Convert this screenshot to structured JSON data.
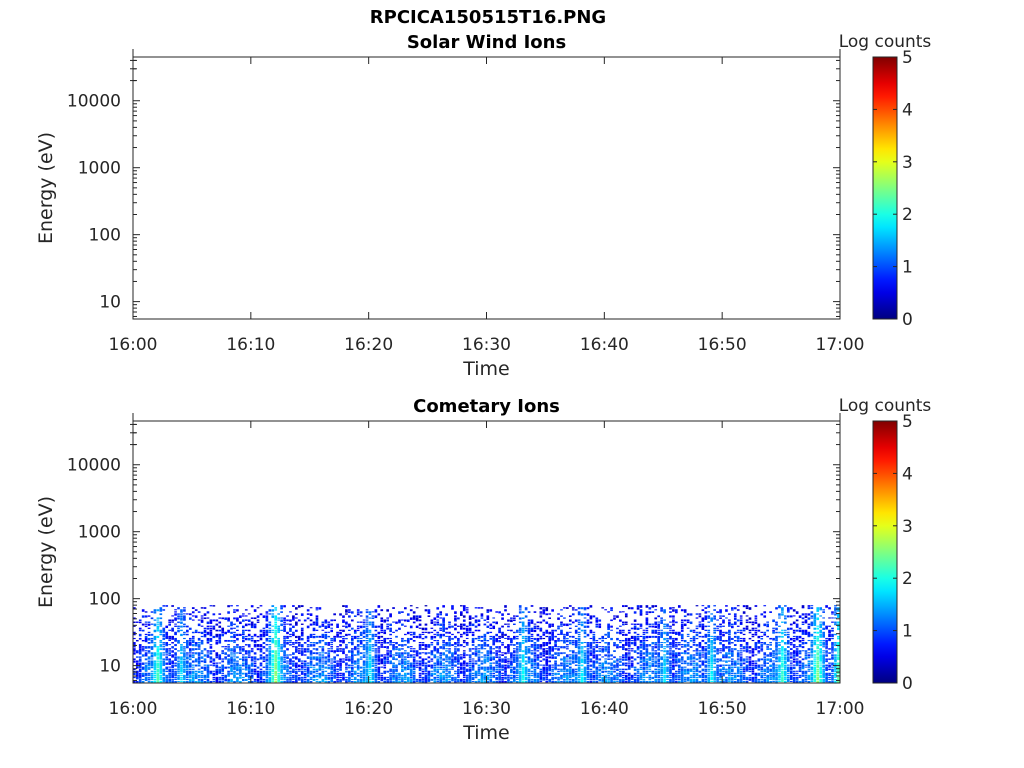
{
  "figure": {
    "title": "RPCICA150515T16.PNG"
  },
  "chart_data": [
    {
      "type": "heatmap",
      "title": "Solar Wind Ions",
      "xlabel": "Time",
      "ylabel": "Energy (eV)",
      "x_ticks": [
        "16:00",
        "16:10",
        "16:20",
        "16:30",
        "16:40",
        "16:50",
        "17:00"
      ],
      "y_ticks": [
        "10",
        "100",
        "1000",
        "10000"
      ],
      "y_scale": "log",
      "ylim": [
        5.5,
        45000
      ],
      "colorbar": {
        "label": "Log counts",
        "ticks": [
          "0",
          "1",
          "2",
          "3",
          "4",
          "5"
        ],
        "range": [
          0,
          5
        ],
        "colormap": "jet"
      },
      "data_summary": "empty - no counts"
    },
    {
      "type": "heatmap",
      "title": "Cometary Ions",
      "xlabel": "Time",
      "ylabel": "Energy (eV)",
      "x_ticks": [
        "16:00",
        "16:10",
        "16:20",
        "16:30",
        "16:40",
        "16:50",
        "17:00"
      ],
      "y_ticks": [
        "10",
        "100",
        "1000",
        "10000"
      ],
      "y_scale": "log",
      "ylim": [
        5.5,
        45000
      ],
      "colorbar": {
        "label": "Log counts",
        "ticks": [
          "0",
          "1",
          "2",
          "3",
          "4",
          "5"
        ],
        "range": [
          0,
          5
        ],
        "colormap": "jet"
      },
      "data_summary": "counts below ~80 eV throughout 16:00-17:00, mostly 0.3-2 log counts with bursts up to ~2.5-3 near 16:02, 16:12, 16:57-17:00",
      "energy_cutoff_eV": 80,
      "bursts": [
        {
          "time": "16:02",
          "peak_log_counts": 2.3
        },
        {
          "time": "16:04",
          "peak_log_counts": 1.8
        },
        {
          "time": "16:12",
          "peak_log_counts": 2.7
        },
        {
          "time": "16:20",
          "peak_log_counts": 1.9
        },
        {
          "time": "16:33",
          "peak_log_counts": 2.0
        },
        {
          "time": "16:38",
          "peak_log_counts": 1.9
        },
        {
          "time": "16:45",
          "peak_log_counts": 1.8
        },
        {
          "time": "16:49",
          "peak_log_counts": 1.9
        },
        {
          "time": "16:55",
          "peak_log_counts": 2.2
        },
        {
          "time": "16:58",
          "peak_log_counts": 2.6
        },
        {
          "time": "17:00",
          "peak_log_counts": 3.0
        }
      ]
    }
  ]
}
